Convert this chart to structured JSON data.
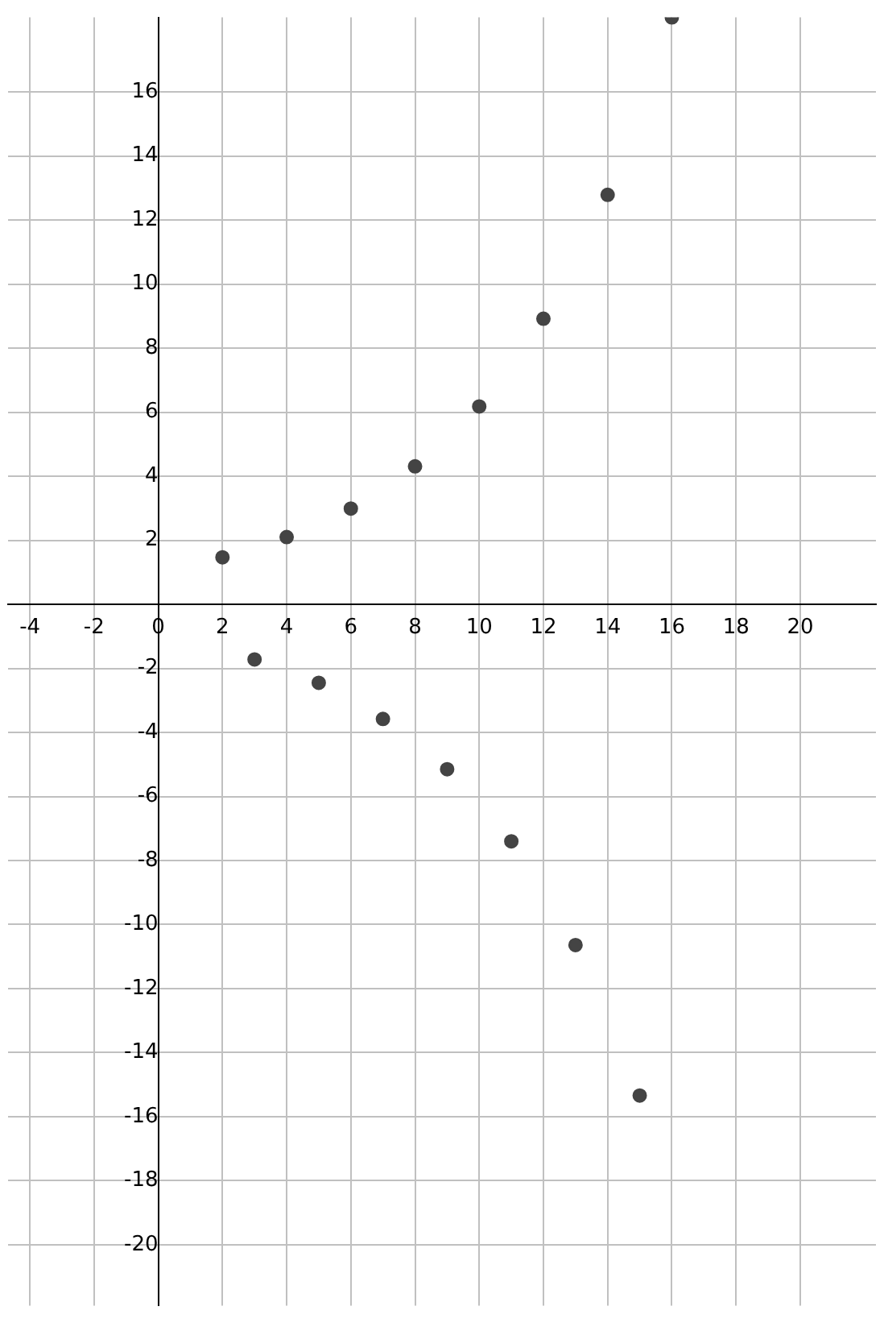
{
  "chart_data": {
    "type": "scatter",
    "x": [
      2,
      3,
      4,
      5,
      6,
      7,
      8,
      9,
      10,
      11,
      12,
      13,
      14,
      15,
      16
    ],
    "series": [
      {
        "color": "#444444",
        "values": [
          1.47,
          -1.72,
          2.1,
          -2.45,
          2.99,
          -3.58,
          4.31,
          -5.15,
          6.18,
          -7.4,
          8.92,
          -10.64,
          12.79,
          -15.34,
          18.33
        ]
      }
    ],
    "xlim": [
      -4.68,
      22.36
    ],
    "ylim": [
      -21.9,
      18.33
    ],
    "xticks": [
      -4,
      -2,
      0,
      2,
      4,
      6,
      8,
      10,
      12,
      14,
      16,
      18,
      20
    ],
    "yticks": [
      -20,
      -18,
      -16,
      -14,
      -12,
      -10,
      -8,
      -6,
      -4,
      -2,
      {
        "value": 0,
        "label": null
      },
      2,
      4,
      6,
      8,
      10,
      12,
      14,
      16
    ],
    "grid": true,
    "legend": false,
    "marker": "circle"
  }
}
